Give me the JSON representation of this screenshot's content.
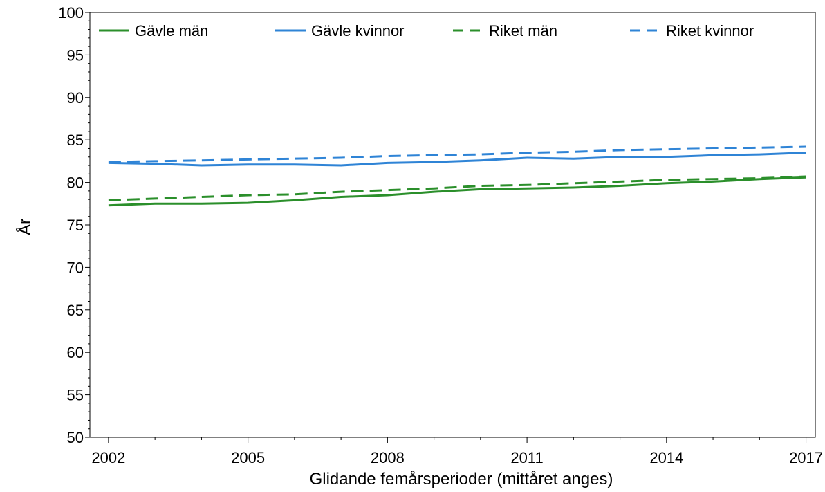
{
  "chart_data": {
    "type": "line",
    "title": "",
    "xlabel": "Glidande femårsperioder (mittåret anges)",
    "ylabel": "År",
    "xlim": [
      2001.6,
      2017.2
    ],
    "ylim": [
      50,
      100
    ],
    "xticks": [
      2002,
      2005,
      2008,
      2011,
      2014,
      2017
    ],
    "yticks": [
      50,
      55,
      60,
      65,
      70,
      75,
      80,
      85,
      90,
      95,
      100
    ],
    "grid": false,
    "legend_position": "top",
    "x": [
      2002,
      2003,
      2004,
      2005,
      2006,
      2007,
      2008,
      2009,
      2010,
      2011,
      2012,
      2013,
      2014,
      2015,
      2016,
      2017
    ],
    "series": [
      {
        "name": "Gävle män",
        "color": "#2b8f2b",
        "dash": "solid",
        "values": [
          77.3,
          77.5,
          77.5,
          77.6,
          77.9,
          78.3,
          78.5,
          78.9,
          79.2,
          79.3,
          79.4,
          79.6,
          79.9,
          80.1,
          80.4,
          80.6
        ]
      },
      {
        "name": "Gävle kvinnor",
        "color": "#2f84d6",
        "dash": "solid",
        "values": [
          82.3,
          82.2,
          82.0,
          82.1,
          82.1,
          82.0,
          82.3,
          82.4,
          82.6,
          82.9,
          82.8,
          83.0,
          83.0,
          83.2,
          83.3,
          83.5
        ]
      },
      {
        "name": "Riket män",
        "color": "#2b8f2b",
        "dash": "dashed",
        "values": [
          77.9,
          78.1,
          78.3,
          78.5,
          78.6,
          78.9,
          79.1,
          79.3,
          79.6,
          79.7,
          79.9,
          80.1,
          80.3,
          80.4,
          80.5,
          80.7
        ]
      },
      {
        "name": "Riket kvinnor",
        "color": "#2f84d6",
        "dash": "dashed",
        "values": [
          82.4,
          82.5,
          82.6,
          82.7,
          82.8,
          82.9,
          83.1,
          83.2,
          83.3,
          83.5,
          83.6,
          83.8,
          83.9,
          84.0,
          84.1,
          84.2
        ]
      }
    ]
  }
}
